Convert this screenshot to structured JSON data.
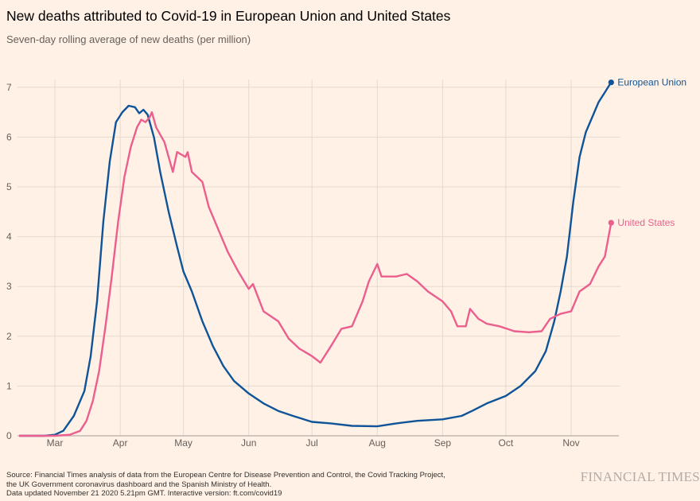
{
  "chart_data": {
    "type": "line",
    "title": "New deaths attributed to Covid-19 in European Union and United States",
    "subtitle": "Seven-day rolling average of new deaths (per million)",
    "xlabel": "",
    "ylabel": "",
    "ylim": [
      0,
      7
    ],
    "yticks": [
      "0",
      "1",
      "2",
      "3",
      "4",
      "5",
      "6",
      "7"
    ],
    "xticks": [
      {
        "date": "2020-03-01",
        "label": "Mar"
      },
      {
        "date": "2020-04-01",
        "label": "Apr"
      },
      {
        "date": "2020-05-01",
        "label": "May"
      },
      {
        "date": "2020-06-01",
        "label": "Jun"
      },
      {
        "date": "2020-07-01",
        "label": "Jul"
      },
      {
        "date": "2020-08-01",
        "label": "Aug"
      },
      {
        "date": "2020-09-01",
        "label": "Sep"
      },
      {
        "date": "2020-10-01",
        "label": "Oct"
      },
      {
        "date": "2020-11-01",
        "label": "Nov"
      }
    ],
    "grid": true,
    "legend": "end-of-line labels",
    "series": [
      {
        "name": "European Union",
        "color": "#0f5499",
        "points": [
          [
            "2020-02-13",
            0
          ],
          [
            "2020-02-25",
            0
          ],
          [
            "2020-03-01",
            0.02
          ],
          [
            "2020-03-05",
            0.1
          ],
          [
            "2020-03-10",
            0.4
          ],
          [
            "2020-03-15",
            0.9
          ],
          [
            "2020-03-18",
            1.6
          ],
          [
            "2020-03-21",
            2.7
          ],
          [
            "2020-03-24",
            4.3
          ],
          [
            "2020-03-27",
            5.5
          ],
          [
            "2020-03-30",
            6.3
          ],
          [
            "2020-04-02",
            6.5
          ],
          [
            "2020-04-05",
            6.63
          ],
          [
            "2020-04-08",
            6.6
          ],
          [
            "2020-04-10",
            6.48
          ],
          [
            "2020-04-12",
            6.55
          ],
          [
            "2020-04-14",
            6.45
          ],
          [
            "2020-04-17",
            6.0
          ],
          [
            "2020-04-20",
            5.3
          ],
          [
            "2020-04-24",
            4.5
          ],
          [
            "2020-04-28",
            3.8
          ],
          [
            "2020-05-01",
            3.3
          ],
          [
            "2020-05-05",
            2.9
          ],
          [
            "2020-05-10",
            2.3
          ],
          [
            "2020-05-15",
            1.8
          ],
          [
            "2020-05-20",
            1.4
          ],
          [
            "2020-05-25",
            1.1
          ],
          [
            "2020-06-01",
            0.85
          ],
          [
            "2020-06-08",
            0.65
          ],
          [
            "2020-06-15",
            0.5
          ],
          [
            "2020-06-22",
            0.4
          ],
          [
            "2020-07-01",
            0.28
          ],
          [
            "2020-07-10",
            0.25
          ],
          [
            "2020-07-20",
            0.2
          ],
          [
            "2020-08-01",
            0.19
          ],
          [
            "2020-08-10",
            0.25
          ],
          [
            "2020-08-20",
            0.3
          ],
          [
            "2020-09-01",
            0.33
          ],
          [
            "2020-09-10",
            0.4
          ],
          [
            "2020-09-15",
            0.5
          ],
          [
            "2020-09-22",
            0.65
          ],
          [
            "2020-10-01",
            0.8
          ],
          [
            "2020-10-08",
            1.0
          ],
          [
            "2020-10-15",
            1.3
          ],
          [
            "2020-10-20",
            1.7
          ],
          [
            "2020-10-24",
            2.3
          ],
          [
            "2020-10-27",
            2.9
          ],
          [
            "2020-10-30",
            3.6
          ],
          [
            "2020-11-02",
            4.7
          ],
          [
            "2020-11-05",
            5.6
          ],
          [
            "2020-11-08",
            6.1
          ],
          [
            "2020-11-11",
            6.4
          ],
          [
            "2020-11-14",
            6.7
          ],
          [
            "2020-11-17",
            6.9
          ],
          [
            "2020-11-20",
            7.1
          ]
        ]
      },
      {
        "name": "United States",
        "color": "#eb5e8d",
        "points": [
          [
            "2020-02-13",
            0
          ],
          [
            "2020-03-01",
            0
          ],
          [
            "2020-03-08",
            0.02
          ],
          [
            "2020-03-13",
            0.1
          ],
          [
            "2020-03-16",
            0.3
          ],
          [
            "2020-03-19",
            0.7
          ],
          [
            "2020-03-22",
            1.3
          ],
          [
            "2020-03-25",
            2.2
          ],
          [
            "2020-03-28",
            3.2
          ],
          [
            "2020-03-31",
            4.3
          ],
          [
            "2020-04-03",
            5.2
          ],
          [
            "2020-04-06",
            5.8
          ],
          [
            "2020-04-09",
            6.2
          ],
          [
            "2020-04-11",
            6.35
          ],
          [
            "2020-04-13",
            6.3
          ],
          [
            "2020-04-15",
            6.4
          ],
          [
            "2020-04-16",
            6.5
          ],
          [
            "2020-04-18",
            6.2
          ],
          [
            "2020-04-22",
            5.9
          ],
          [
            "2020-04-26",
            5.3
          ],
          [
            "2020-04-28",
            5.7
          ],
          [
            "2020-05-02",
            5.6
          ],
          [
            "2020-05-03",
            5.7
          ],
          [
            "2020-05-05",
            5.3
          ],
          [
            "2020-05-10",
            5.1
          ],
          [
            "2020-05-13",
            4.6
          ],
          [
            "2020-05-18",
            4.1
          ],
          [
            "2020-05-22",
            3.7
          ],
          [
            "2020-05-27",
            3.3
          ],
          [
            "2020-06-01",
            2.95
          ],
          [
            "2020-06-03",
            3.05
          ],
          [
            "2020-06-08",
            2.5
          ],
          [
            "2020-06-15",
            2.3
          ],
          [
            "2020-06-20",
            1.95
          ],
          [
            "2020-06-25",
            1.75
          ],
          [
            "2020-07-01",
            1.6
          ],
          [
            "2020-07-05",
            1.47
          ],
          [
            "2020-07-10",
            1.8
          ],
          [
            "2020-07-15",
            2.15
          ],
          [
            "2020-07-20",
            2.2
          ],
          [
            "2020-07-25",
            2.7
          ],
          [
            "2020-07-28",
            3.1
          ],
          [
            "2020-08-01",
            3.45
          ],
          [
            "2020-08-03",
            3.2
          ],
          [
            "2020-08-10",
            3.2
          ],
          [
            "2020-08-15",
            3.25
          ],
          [
            "2020-08-20",
            3.1
          ],
          [
            "2020-08-25",
            2.9
          ],
          [
            "2020-09-01",
            2.7
          ],
          [
            "2020-09-05",
            2.5
          ],
          [
            "2020-09-08",
            2.2
          ],
          [
            "2020-09-12",
            2.2
          ],
          [
            "2020-09-14",
            2.55
          ],
          [
            "2020-09-18",
            2.35
          ],
          [
            "2020-09-22",
            2.25
          ],
          [
            "2020-09-28",
            2.2
          ],
          [
            "2020-10-05",
            2.1
          ],
          [
            "2020-10-12",
            2.08
          ],
          [
            "2020-10-18",
            2.1
          ],
          [
            "2020-10-22",
            2.35
          ],
          [
            "2020-10-27",
            2.45
          ],
          [
            "2020-11-01",
            2.5
          ],
          [
            "2020-11-05",
            2.9
          ],
          [
            "2020-11-10",
            3.05
          ],
          [
            "2020-11-14",
            3.4
          ],
          [
            "2020-11-17",
            3.6
          ],
          [
            "2020-11-20",
            4.28
          ]
        ]
      }
    ]
  },
  "footer": {
    "source_line1": "Source: Financial Times analysis of data from the European Centre for Disease Prevention and Control, the Covid Tracking Project,",
    "source_line2": "the UK Government coronavirus dashboard and the Spanish Ministry of Health.",
    "updated": "Data updated November 21 2020 5.21pm GMT. Interactive version: ft.com/covid19",
    "brand": "FINANCIAL TIMES"
  },
  "colors": {
    "background": "#fff1e5",
    "eu": "#0f5499",
    "us": "#eb5e8d",
    "grid": "#e6d9ce"
  }
}
